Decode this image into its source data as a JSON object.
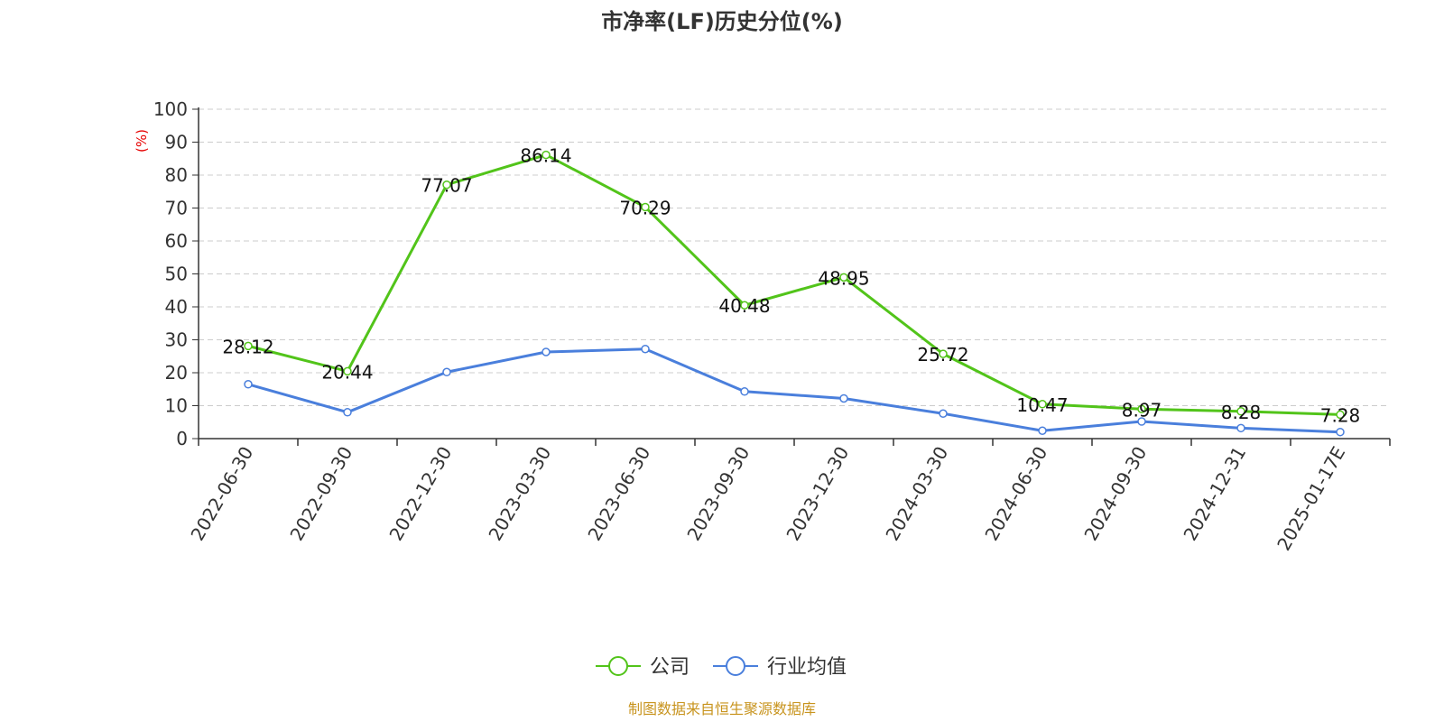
{
  "chart_data": {
    "type": "line",
    "title": "市净率(LF)历史分位(%)",
    "ylabel": "(%)",
    "ylim": [
      0,
      100
    ],
    "yticks": [
      0,
      10,
      20,
      30,
      40,
      50,
      60,
      70,
      80,
      90,
      100
    ],
    "grid": true,
    "legend_position": "bottom-center",
    "categories": [
      "2022-06-30",
      "2022-09-30",
      "2022-12-30",
      "2023-03-30",
      "2023-06-30",
      "2023-09-30",
      "2023-12-30",
      "2024-03-30",
      "2024-06-30",
      "2024-09-30",
      "2024-12-31",
      "2025-01-17E"
    ],
    "series": [
      {
        "name": "公司",
        "color": "#52c41a",
        "values": [
          28.12,
          20.44,
          77.07,
          86.14,
          70.29,
          40.48,
          48.95,
          25.72,
          10.47,
          8.97,
          8.28,
          7.28
        ],
        "labels": [
          "28.12",
          "20.44",
          "77.07",
          "86.14",
          "70.29",
          "40.48",
          "48.95",
          "25.72",
          "10.47",
          "8.97",
          "8.28",
          "7.28"
        ]
      },
      {
        "name": "行业均值",
        "color": "#4a7fdc",
        "values": [
          16.5,
          8.0,
          20.2,
          26.3,
          27.2,
          14.3,
          12.2,
          7.6,
          2.4,
          5.2,
          3.2,
          2.0
        ]
      }
    ],
    "source": "制图数据来自恒生聚源数据库"
  }
}
